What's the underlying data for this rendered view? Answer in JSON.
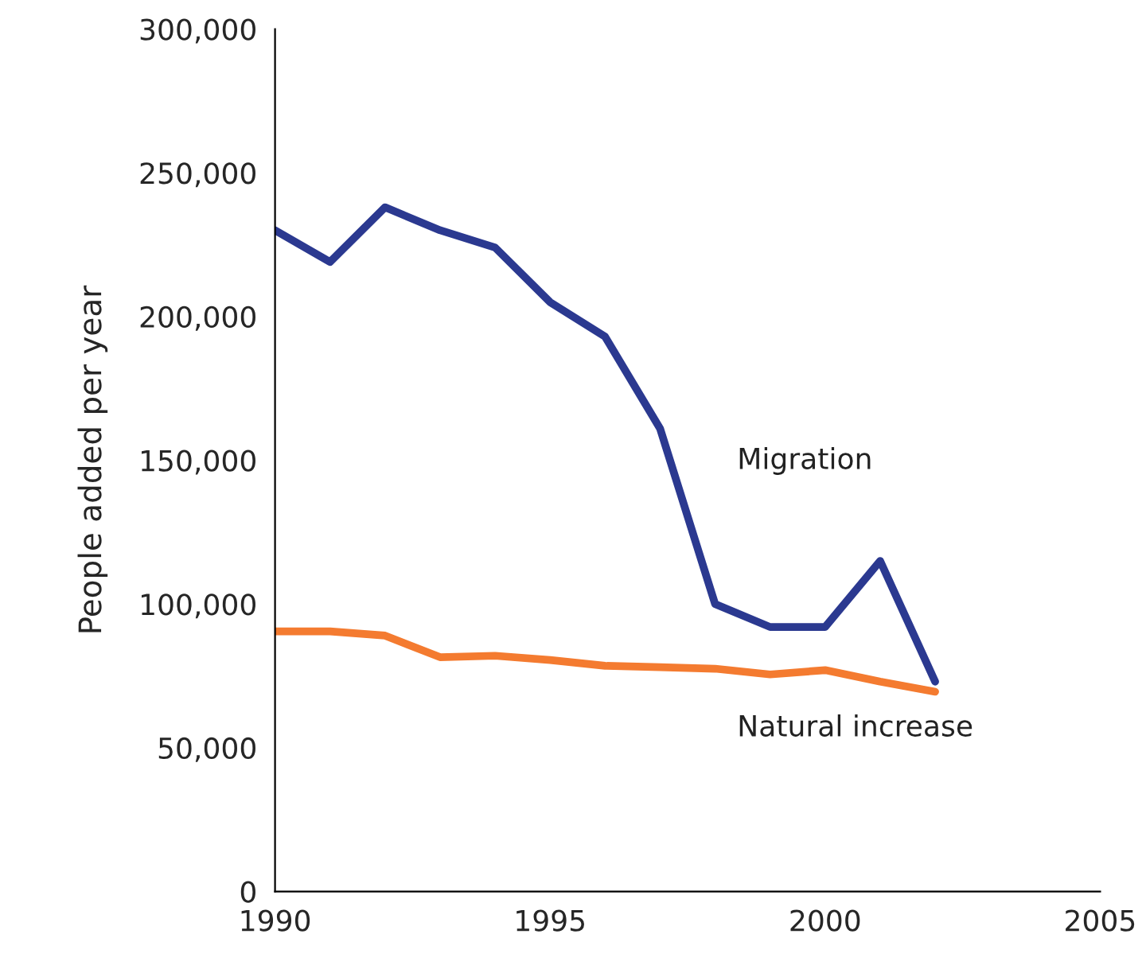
{
  "chart_data": {
    "type": "line",
    "ylabel": "People added per year",
    "x": [
      1990,
      1991,
      1992,
      1993,
      1994,
      1995,
      1996,
      1997,
      1998,
      1999,
      2000,
      2001,
      2002
    ],
    "series": [
      {
        "name": "Migration",
        "color": "#2b3990",
        "values": [
          230000,
          219000,
          238000,
          230000,
          224000,
          205000,
          193000,
          161000,
          100000,
          92000,
          92000,
          115000,
          73000
        ]
      },
      {
        "name": "Natural increase",
        "color": "#f47b30",
        "values": [
          90500,
          90500,
          89000,
          81500,
          82000,
          80500,
          78500,
          78000,
          77500,
          75500,
          77000,
          73000,
          69500
        ]
      }
    ],
    "xlim": [
      1990,
      2005
    ],
    "xticks": [
      1990,
      1995,
      2000,
      2005
    ],
    "ylim": [
      0,
      300000
    ],
    "yticks": [
      {
        "value": 0,
        "label": "0"
      },
      {
        "value": 50000,
        "label": "50,000"
      },
      {
        "value": 100000,
        "label": "100,000"
      },
      {
        "value": 150000,
        "label": "150,000"
      },
      {
        "value": 200000,
        "label": "200,000"
      },
      {
        "value": 250000,
        "label": "250,000"
      },
      {
        "value": 300000,
        "label": "300,000"
      }
    ],
    "grid": false,
    "legend": false,
    "marker": "none",
    "line_style": "solid"
  }
}
